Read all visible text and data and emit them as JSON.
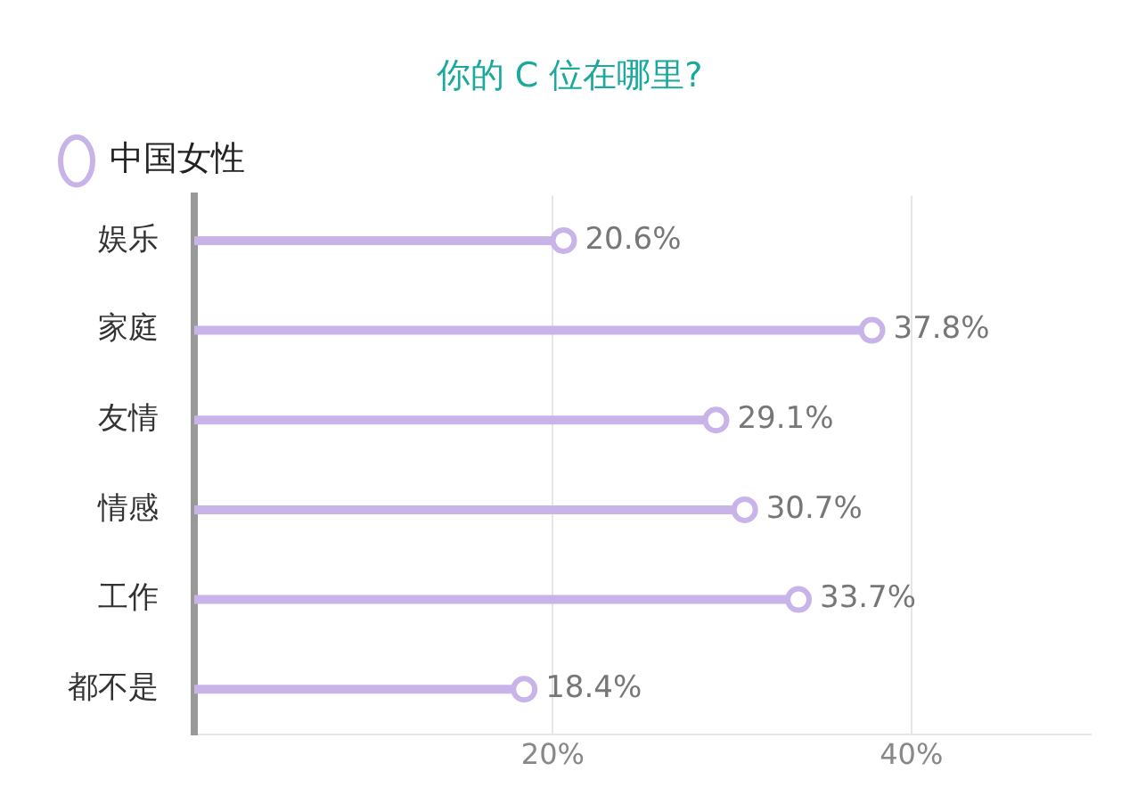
{
  "chart_data": {
    "type": "lollipop",
    "orientation": "horizontal",
    "title": "你的 C 位在哪里?",
    "categories": [
      "娱乐",
      "家庭",
      "友情",
      "情感",
      "工作",
      "都不是"
    ],
    "series": [
      {
        "name": "中国女性",
        "color": "#c8b4e8",
        "values": [
          20.6,
          37.8,
          29.1,
          30.7,
          33.7,
          18.4
        ],
        "value_labels": [
          "20.6%",
          "37.8%",
          "29.1%",
          "30.7%",
          "33.7%",
          "18.4%"
        ]
      }
    ],
    "xlim": [
      0,
      50
    ],
    "xticks": [
      {
        "value": 20,
        "label": "20%"
      },
      {
        "value": 40,
        "label": "40%"
      }
    ],
    "grid": "x",
    "legend": "top left",
    "marker": "circle"
  }
}
